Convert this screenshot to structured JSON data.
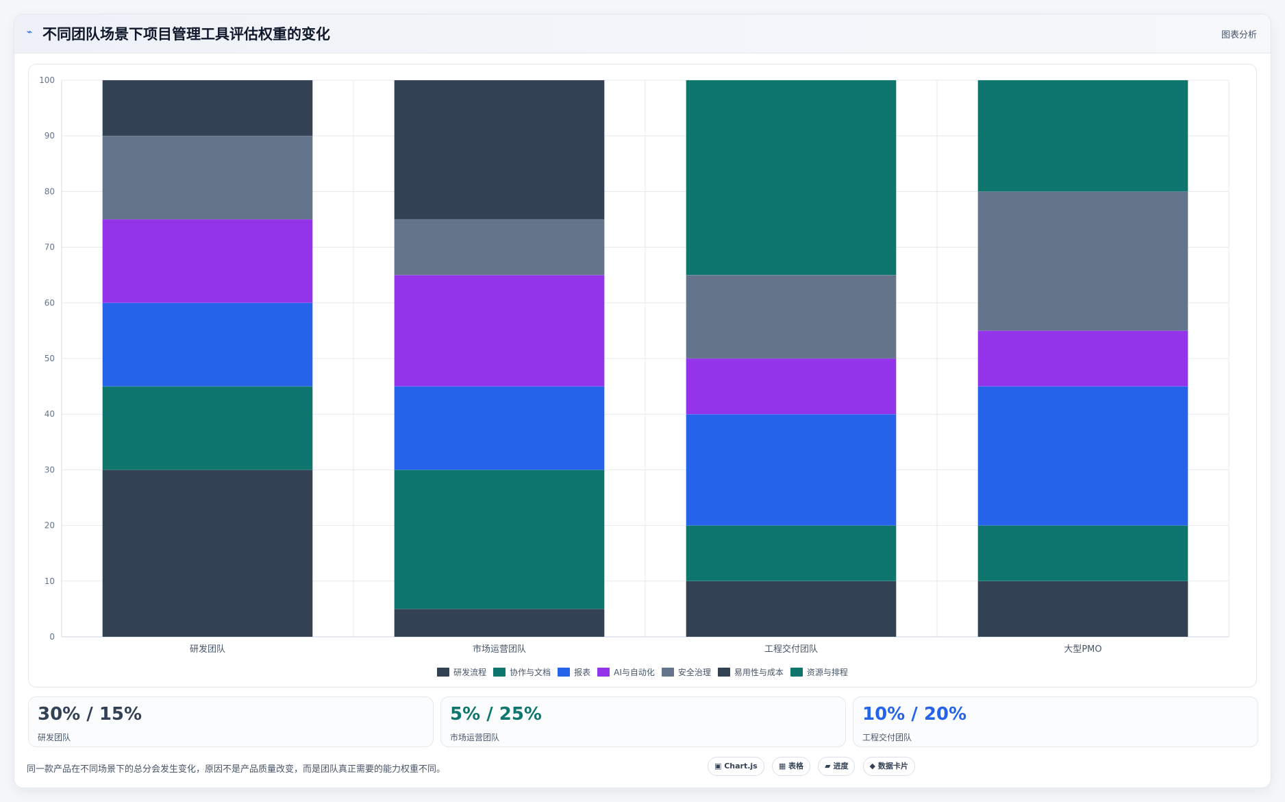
{
  "header": {
    "icon": "trend-icon",
    "icon_glyph": "⌁",
    "title": "不同团队场景下项目管理工具评估权重的变化",
    "link_label": "图表分析"
  },
  "chart_data": {
    "type": "bar",
    "stacked": true,
    "title": "",
    "xlabel": "",
    "ylabel": "",
    "ylim": [
      0,
      100
    ],
    "yticks": [
      0,
      10,
      20,
      30,
      40,
      50,
      60,
      70,
      80,
      90,
      100
    ],
    "grid": true,
    "legend_position": "bottom",
    "categories": [
      "研发团队",
      "市场运营团队",
      "工程交付团队",
      "大型PMO"
    ],
    "series": [
      {
        "name": "研发流程",
        "color": "#334155",
        "values": [
          30,
          5,
          10,
          10
        ]
      },
      {
        "name": "协作与文档",
        "color": "#0f766e",
        "values": [
          15,
          25,
          10,
          10
        ]
      },
      {
        "name": "报表",
        "color": "#2563eb",
        "values": [
          15,
          15,
          20,
          25
        ]
      },
      {
        "name": "AI与自动化",
        "color": "#9333ea",
        "values": [
          15,
          20,
          10,
          10
        ]
      },
      {
        "name": "安全治理",
        "color": "#64748b",
        "values": [
          15,
          10,
          15,
          25
        ]
      },
      {
        "name": "易用性与成本",
        "color": "#334155",
        "values": [
          10,
          25,
          0,
          0
        ]
      },
      {
        "name": "资源与排程",
        "color": "#0f766e",
        "values": [
          0,
          0,
          35,
          20
        ]
      }
    ]
  },
  "stats": [
    {
      "value": "30% / 15%",
      "label": "研发团队",
      "color": "#334155"
    },
    {
      "value": "5% / 25%",
      "label": "市场运营团队",
      "color": "#0f766e"
    },
    {
      "value": "10% / 20%",
      "label": "工程交付团队",
      "color": "#2563eb"
    }
  ],
  "footnote": "同一款产品在不同场景下的总分会发生变化，原因不是产品质量改变，而是团队真正需要的能力权重不同。",
  "tags": [
    {
      "icon": "chart-icon",
      "label": "▣ Chart.js"
    },
    {
      "icon": "table-icon",
      "label": "▦ 表格"
    },
    {
      "icon": "progress-icon",
      "label": "▰ 进度"
    },
    {
      "icon": "card-icon",
      "label": "◆ 数据卡片"
    }
  ]
}
